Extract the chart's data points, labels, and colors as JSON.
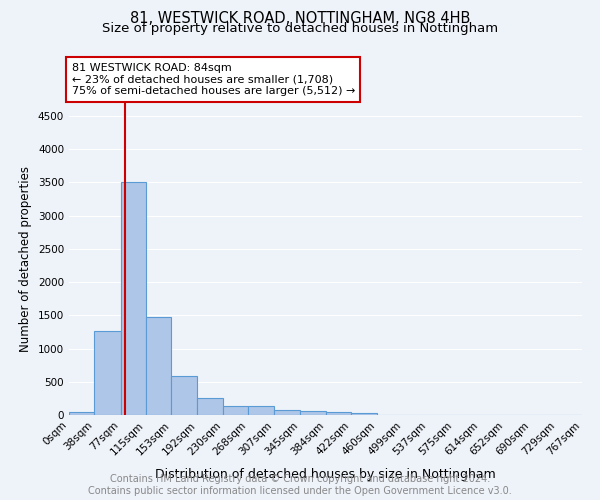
{
  "title": "81, WESTWICK ROAD, NOTTINGHAM, NG8 4HB",
  "subtitle": "Size of property relative to detached houses in Nottingham",
  "xlabel": "Distribution of detached houses by size in Nottingham",
  "ylabel": "Number of detached properties",
  "bin_edges": [
    0,
    38,
    77,
    115,
    153,
    192,
    230,
    268,
    307,
    345,
    384,
    422,
    460,
    499,
    537,
    575,
    614,
    652,
    690,
    729,
    767
  ],
  "bar_heights": [
    50,
    1270,
    3500,
    1470,
    580,
    255,
    140,
    130,
    75,
    60,
    50,
    35,
    0,
    0,
    0,
    0,
    0,
    0,
    0,
    0
  ],
  "bar_color": "#aec6e8",
  "bar_edge_color": "#5b9bd5",
  "bar_edge_width": 0.8,
  "property_sqm": 84,
  "red_line_color": "#cc0000",
  "annotation_box_edge": "#cc0000",
  "annotation_text": "81 WESTWICK ROAD: 84sqm\n← 23% of detached houses are smaller (1,708)\n75% of semi-detached houses are larger (5,512) →",
  "ylim": [
    0,
    4700
  ],
  "yticks": [
    0,
    500,
    1000,
    1500,
    2000,
    2500,
    3000,
    3500,
    4000,
    4500
  ],
  "background_color": "#eef2f9",
  "axes_background": "#eef2f9",
  "grid_color": "#ffffff",
  "footer_text": "Contains HM Land Registry data © Crown copyright and database right 2024.\nContains public sector information licensed under the Open Government Licence v3.0.",
  "title_fontsize": 10.5,
  "subtitle_fontsize": 9.5,
  "xlabel_fontsize": 9,
  "ylabel_fontsize": 8.5,
  "tick_fontsize": 7.5,
  "annotation_fontsize": 8,
  "footer_fontsize": 7
}
